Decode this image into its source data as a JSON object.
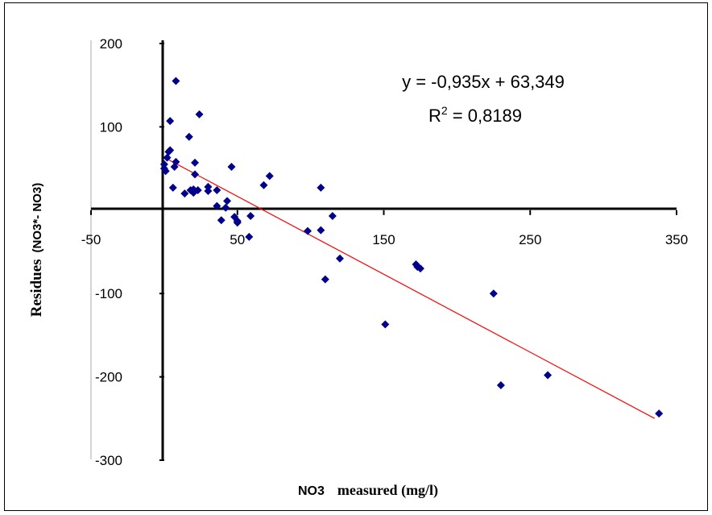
{
  "chart_data": {
    "type": "scatter",
    "title": "",
    "xlabel_prefix": "NO3",
    "xlabel_main": "measured (mg/l)",
    "ylabel_main": "Residues",
    "ylabel_sub": "(NO3*- NO3)",
    "xlim": [
      -50,
      350
    ],
    "ylim": [
      -300,
      200
    ],
    "x_ticks": [
      -50,
      50,
      150,
      250,
      350
    ],
    "y_ticks": [
      200,
      100,
      -100,
      -200,
      -300
    ],
    "grid": false,
    "legend": "none",
    "marker_color": "#00008b",
    "trendline_color": "#ff0000",
    "trendline": {
      "slope": -0.935,
      "intercept": 63.349,
      "x_range": [
        0,
        335
      ],
      "equation": "y = -0,935x + 63,349",
      "r2_label": "R",
      "r2_exp": "2",
      "r2_value": " = 0,8189"
    },
    "points": [
      [
        0,
        55
      ],
      [
        0,
        50
      ],
      [
        1,
        47
      ],
      [
        2,
        63
      ],
      [
        3,
        70
      ],
      [
        4,
        72
      ],
      [
        4,
        107
      ],
      [
        7,
        52
      ],
      [
        8,
        58
      ],
      [
        6,
        27
      ],
      [
        8,
        155
      ],
      [
        14,
        20
      ],
      [
        17,
        88
      ],
      [
        18,
        24
      ],
      [
        20,
        21
      ],
      [
        20,
        25
      ],
      [
        21,
        43
      ],
      [
        21,
        57
      ],
      [
        23,
        24
      ],
      [
        24,
        115
      ],
      [
        30,
        28
      ],
      [
        30,
        23
      ],
      [
        36,
        24
      ],
      [
        36,
        5
      ],
      [
        39,
        -12
      ],
      [
        42,
        3
      ],
      [
        43,
        11
      ],
      [
        46,
        52
      ],
      [
        48,
        -8
      ],
      [
        50,
        -15
      ],
      [
        50,
        -13
      ],
      [
        58,
        -32
      ],
      [
        59,
        -7
      ],
      [
        68,
        30
      ],
      [
        72,
        41
      ],
      [
        98,
        -25
      ],
      [
        107,
        27
      ],
      [
        107,
        -24
      ],
      [
        110,
        -83
      ],
      [
        115,
        -7
      ],
      [
        120,
        -58
      ],
      [
        151,
        -137
      ],
      [
        172,
        -65
      ],
      [
        173,
        -68
      ],
      [
        175,
        -70
      ],
      [
        225,
        -100
      ],
      [
        230,
        -210
      ],
      [
        262,
        -198
      ],
      [
        338,
        -244
      ]
    ]
  }
}
